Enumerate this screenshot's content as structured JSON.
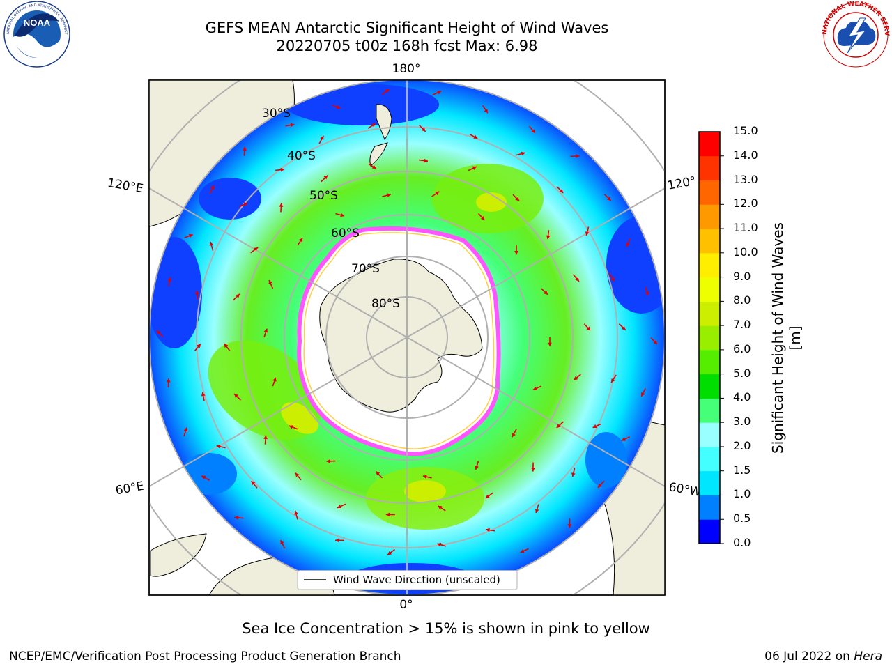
{
  "header": {
    "title_line1": "GEFS MEAN Antarctic Significant Height of Wind Waves",
    "title_line2": "20220705 t00z 168h fcst   Max: 6.98"
  },
  "logos": {
    "noaa": {
      "name": "noaa-logo",
      "text": "NOAA",
      "ring_text": "NATIONAL OCEANIC AND ATMOSPHERIC ADMINISTRATION · U.S. DEPARTMENT OF COMMERCE"
    },
    "nws": {
      "name": "nws-logo",
      "ring_text": "NATIONAL WEATHER SERVICE"
    }
  },
  "map": {
    "longitude_labels": {
      "top": "180°",
      "bottom": "0°",
      "left_upper": "120°E",
      "left_lower": "60°E",
      "right_upper": "120°",
      "right_lower": "60°W"
    },
    "latitude_labels": [
      "30°S",
      "40°S",
      "50°S",
      "60°S",
      "70°S",
      "80°S"
    ],
    "legend_label": "Wind Wave Direction (unscaled)",
    "land_color": "#efeddc",
    "sea_ice_colors": [
      "#ff55ff",
      "#ffd040"
    ],
    "field_max": 6.98
  },
  "colorbar": {
    "label": "Significant Height of Wind Waves [m]",
    "ticks": [
      "0.0",
      "0.5",
      "1.0",
      "1.5",
      "2.0",
      "3.0",
      "4.0",
      "5.0",
      "6.0",
      "7.0",
      "8.0",
      "9.0",
      "10.0",
      "11.0",
      "12.0",
      "13.0",
      "14.0",
      "15.0"
    ],
    "colors": [
      "#0000ff",
      "#0080ff",
      "#00e6ff",
      "#44ffff",
      "#99ffff",
      "#44ff77",
      "#00dd00",
      "#55ee00",
      "#99ee00",
      "#ccee00",
      "#eeff00",
      "#ffee00",
      "#ffc000",
      "#ff9900",
      "#ff6600",
      "#ff3300",
      "#ff0000"
    ]
  },
  "footer": {
    "note": "Sea Ice Concentration > 15% is shown in pink to yellow",
    "credit": "NCEP/EMC/Verification Post Processing Product Generation Branch",
    "date": "06 Jul 2022 on",
    "machine": "Hera"
  }
}
